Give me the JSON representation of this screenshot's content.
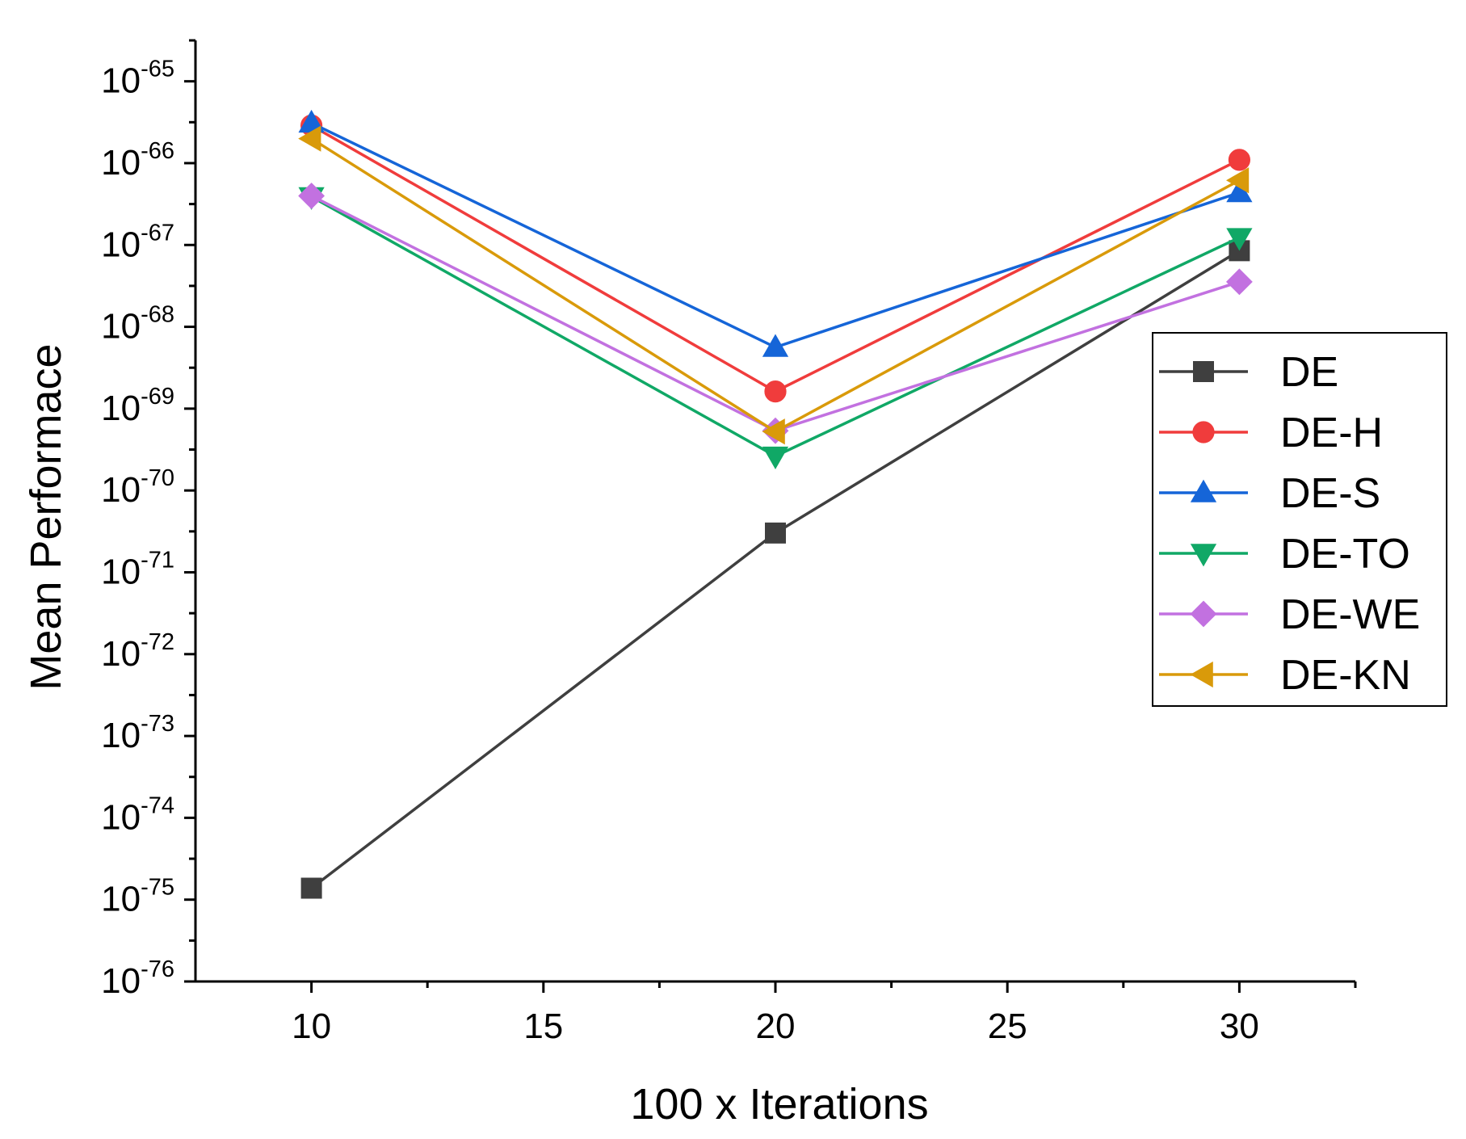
{
  "chart_data": {
    "type": "line",
    "xlabel": "100 x Iterations",
    "ylabel": "Mean Performace",
    "y_scale": "log",
    "xlim": [
      7.5,
      32.5
    ],
    "ylim_exponent": [
      -76,
      -64.5
    ],
    "x_ticks": [
      10,
      15,
      20,
      25,
      30
    ],
    "x_tick_labels": [
      "10",
      "15",
      "20",
      "25",
      "30"
    ],
    "y_tick_base": "10",
    "y_tick_exponents": [
      "-65",
      "-66",
      "-67",
      "-68",
      "-69",
      "-70",
      "-71",
      "-72",
      "-73",
      "-74",
      "-75",
      "-76"
    ],
    "x": [
      10,
      20,
      30
    ],
    "series": [
      {
        "name": "DE",
        "color": "#3f3f3f",
        "marker": "square",
        "log10_values": [
          -74.86,
          -70.52,
          -67.07
        ]
      },
      {
        "name": "DE-H",
        "color": "#f03c3c",
        "marker": "circle",
        "log10_values": [
          -65.54,
          -68.79,
          -65.96
        ]
      },
      {
        "name": "DE-S",
        "color": "#1565d8",
        "marker": "triangle-up",
        "log10_values": [
          -65.51,
          -68.25,
          -66.36
        ]
      },
      {
        "name": "DE-TO",
        "color": "#10a866",
        "marker": "triangle-down",
        "log10_values": [
          -66.41,
          -69.58,
          -66.91
        ]
      },
      {
        "name": "DE-WE",
        "color": "#c271e0",
        "marker": "diamond",
        "log10_values": [
          -66.4,
          -69.27,
          -67.45
        ]
      },
      {
        "name": "DE-KN",
        "color": "#d99a0a",
        "marker": "triangle-left",
        "log10_values": [
          -65.7,
          -69.28,
          -66.21
        ]
      }
    ],
    "legend_position": "center-right"
  }
}
